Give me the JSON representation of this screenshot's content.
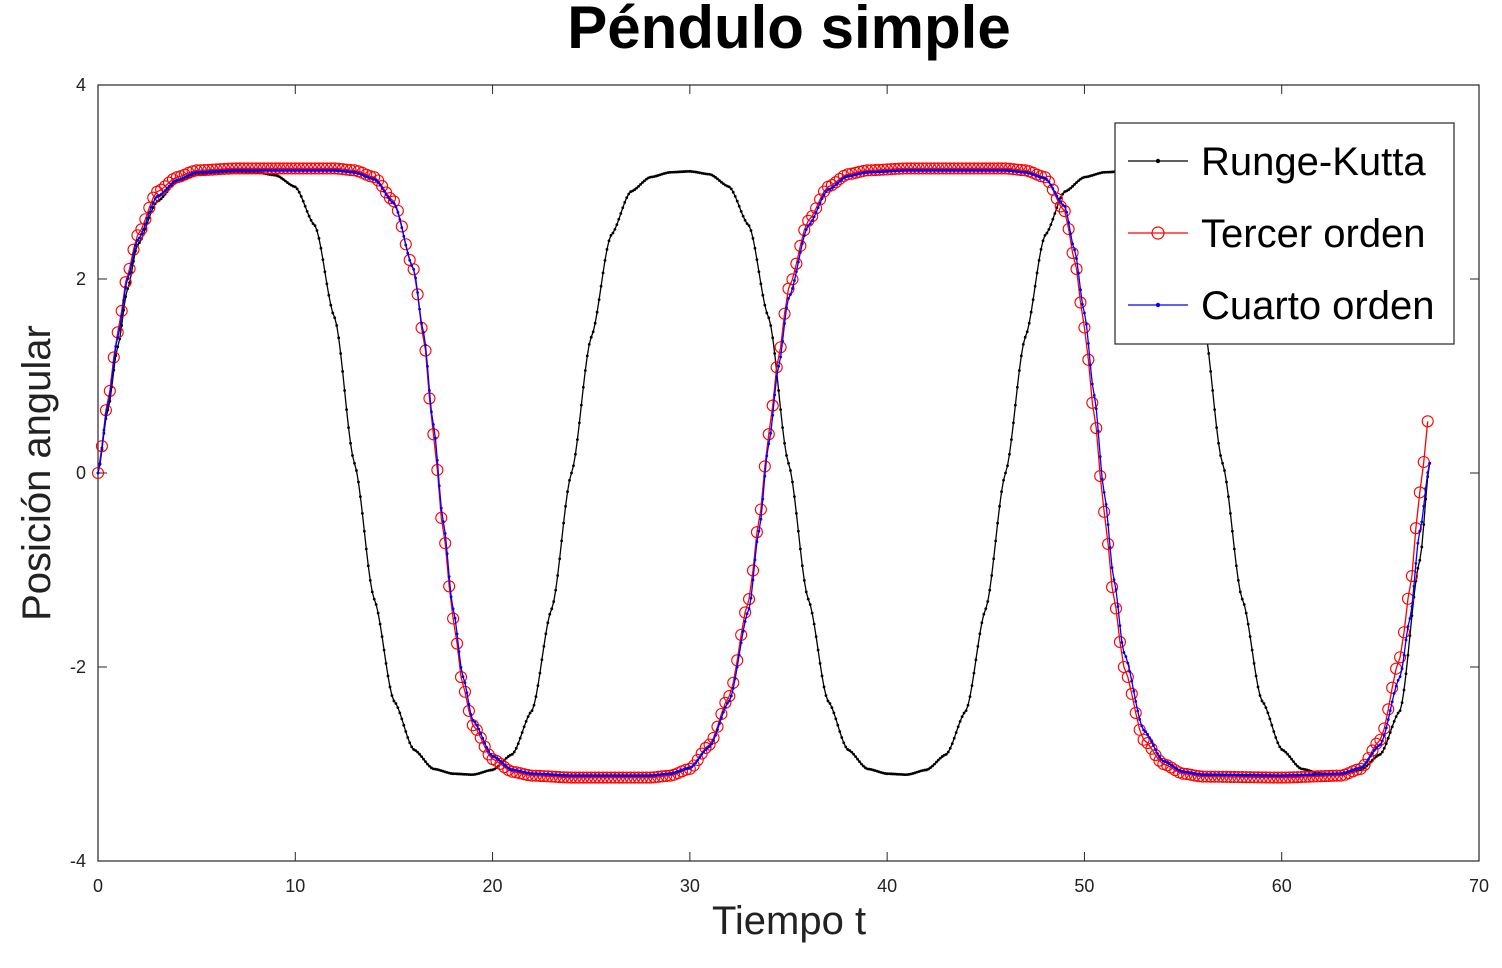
{
  "chart_data": {
    "type": "line",
    "title": "Péndulo simple",
    "xlabel": "Tiempo t",
    "ylabel": "Posición angular",
    "xlim": [
      0,
      70
    ],
    "ylim": [
      -4,
      4
    ],
    "xticks": [
      0,
      10,
      20,
      30,
      40,
      50,
      60,
      70
    ],
    "yticks": [
      -4,
      -2,
      0,
      2,
      4
    ],
    "grid": false,
    "legend_position": "top-right",
    "x_end": 67.5,
    "series": [
      {
        "name": "Runge-Kutta",
        "color": "#000000",
        "marker": "dot",
        "x_step": 0.1,
        "points": [
          [
            0,
            0
          ],
          [
            0.5,
            0.65
          ],
          [
            1,
            1.3
          ],
          [
            1.5,
            1.9
          ],
          [
            2,
            2.35
          ],
          [
            3,
            2.8
          ],
          [
            4,
            3.0
          ],
          [
            5,
            3.08
          ],
          [
            6,
            3.1
          ],
          [
            7,
            3.11
          ],
          [
            8,
            3.1
          ],
          [
            9,
            3.07
          ],
          [
            10,
            2.95
          ],
          [
            11,
            2.55
          ],
          [
            12,
            1.6
          ],
          [
            13,
            0.1
          ],
          [
            14,
            -1.3
          ],
          [
            15,
            -2.35
          ],
          [
            16,
            -2.85
          ],
          [
            17,
            -3.05
          ],
          [
            18,
            -3.1
          ],
          [
            19,
            -3.11
          ],
          [
            20,
            -3.06
          ],
          [
            21,
            -2.9
          ],
          [
            22,
            -2.45
          ],
          [
            23,
            -1.4
          ],
          [
            24,
            0.0
          ],
          [
            25,
            1.4
          ],
          [
            26,
            2.45
          ],
          [
            27,
            2.9
          ],
          [
            28,
            3.05
          ],
          [
            29,
            3.1
          ],
          [
            30,
            3.11
          ],
          [
            31,
            3.08
          ],
          [
            32,
            2.95
          ],
          [
            33,
            2.55
          ],
          [
            34,
            1.6
          ],
          [
            35,
            0.1
          ],
          [
            36,
            -1.3
          ],
          [
            37,
            -2.35
          ],
          [
            38,
            -2.85
          ],
          [
            39,
            -3.05
          ],
          [
            40,
            -3.1
          ],
          [
            41,
            -3.11
          ],
          [
            42,
            -3.06
          ],
          [
            43,
            -2.9
          ],
          [
            44,
            -2.45
          ],
          [
            45,
            -1.4
          ],
          [
            46,
            0.0
          ],
          [
            47,
            1.4
          ],
          [
            48,
            2.45
          ],
          [
            49,
            2.9
          ],
          [
            50,
            3.05
          ],
          [
            51,
            3.1
          ],
          [
            52,
            3.11
          ],
          [
            53,
            3.08
          ],
          [
            54,
            2.95
          ],
          [
            55,
            2.55
          ],
          [
            56,
            1.6
          ],
          [
            57,
            0.1
          ],
          [
            58,
            -1.3
          ],
          [
            59,
            -2.35
          ],
          [
            60,
            -2.85
          ],
          [
            61,
            -3.05
          ],
          [
            62,
            -3.1
          ],
          [
            63,
            -3.11
          ],
          [
            64,
            -3.06
          ],
          [
            65,
            -2.9
          ],
          [
            66,
            -2.45
          ],
          [
            67,
            -0.9
          ],
          [
            67.5,
            0.1
          ]
        ]
      },
      {
        "name": "Tercer orden",
        "color": "#ff0000",
        "marker": "circle",
        "x_step": 0.2,
        "points": [
          [
            0,
            0
          ],
          [
            0.5,
            0.75
          ],
          [
            1,
            1.45
          ],
          [
            1.5,
            2.05
          ],
          [
            2,
            2.45
          ],
          [
            3,
            2.9
          ],
          [
            4,
            3.05
          ],
          [
            5,
            3.12
          ],
          [
            7,
            3.14
          ],
          [
            12,
            3.14
          ],
          [
            13,
            3.12
          ],
          [
            14,
            3.05
          ],
          [
            15,
            2.8
          ],
          [
            16,
            2.1
          ],
          [
            16.5,
            1.4
          ],
          [
            17,
            0.4
          ],
          [
            17.5,
            -0.6
          ],
          [
            18,
            -1.5
          ],
          [
            18.5,
            -2.2
          ],
          [
            19,
            -2.6
          ],
          [
            20,
            -2.95
          ],
          [
            21,
            -3.08
          ],
          [
            22,
            -3.12
          ],
          [
            24,
            -3.14
          ],
          [
            28,
            -3.14
          ],
          [
            29,
            -3.12
          ],
          [
            30,
            -3.05
          ],
          [
            31,
            -2.8
          ],
          [
            32,
            -2.3
          ],
          [
            33,
            -1.3
          ],
          [
            33.5,
            -0.5
          ],
          [
            34,
            0.4
          ],
          [
            34.5,
            1.2
          ],
          [
            35,
            1.9
          ],
          [
            36,
            2.6
          ],
          [
            37,
            2.95
          ],
          [
            38,
            3.08
          ],
          [
            39,
            3.12
          ],
          [
            41,
            3.14
          ],
          [
            46,
            3.14
          ],
          [
            47,
            3.12
          ],
          [
            48,
            3.05
          ],
          [
            49,
            2.7
          ],
          [
            49.5,
            2.2
          ],
          [
            50,
            1.5
          ],
          [
            50.5,
            0.6
          ],
          [
            51,
            -0.4
          ],
          [
            51.5,
            -1.3
          ],
          [
            52,
            -2.0
          ],
          [
            53,
            -2.75
          ],
          [
            54,
            -3.0
          ],
          [
            55,
            -3.1
          ],
          [
            56,
            -3.13
          ],
          [
            60,
            -3.14
          ],
          [
            63,
            -3.12
          ],
          [
            64,
            -3.05
          ],
          [
            65,
            -2.75
          ],
          [
            66,
            -1.9
          ],
          [
            66.5,
            -1.2
          ],
          [
            67,
            -0.2
          ],
          [
            67.5,
            0.65
          ]
        ]
      },
      {
        "name": "Cuarto orden",
        "color": "#0000ff",
        "marker": "dot",
        "x_step": 0.1,
        "points": [
          [
            0,
            0
          ],
          [
            0.5,
            0.7
          ],
          [
            1,
            1.4
          ],
          [
            1.5,
            2.0
          ],
          [
            2,
            2.4
          ],
          [
            3,
            2.85
          ],
          [
            4,
            3.02
          ],
          [
            5,
            3.1
          ],
          [
            7,
            3.12
          ],
          [
            12,
            3.12
          ],
          [
            13,
            3.1
          ],
          [
            14,
            3.03
          ],
          [
            15,
            2.78
          ],
          [
            16,
            2.1
          ],
          [
            16.5,
            1.45
          ],
          [
            17,
            0.5
          ],
          [
            17.5,
            -0.5
          ],
          [
            18,
            -1.4
          ],
          [
            18.5,
            -2.1
          ],
          [
            19,
            -2.55
          ],
          [
            20,
            -2.92
          ],
          [
            21,
            -3.06
          ],
          [
            22,
            -3.1
          ],
          [
            24,
            -3.12
          ],
          [
            28,
            -3.12
          ],
          [
            29,
            -3.1
          ],
          [
            30,
            -3.04
          ],
          [
            31,
            -2.82
          ],
          [
            32,
            -2.35
          ],
          [
            33,
            -1.4
          ],
          [
            33.5,
            -0.6
          ],
          [
            34,
            0.3
          ],
          [
            34.5,
            1.1
          ],
          [
            35,
            1.8
          ],
          [
            36,
            2.55
          ],
          [
            37,
            2.92
          ],
          [
            38,
            3.06
          ],
          [
            39,
            3.1
          ],
          [
            41,
            3.12
          ],
          [
            46,
            3.12
          ],
          [
            47,
            3.1
          ],
          [
            48,
            3.04
          ],
          [
            49,
            2.75
          ],
          [
            49.5,
            2.3
          ],
          [
            50,
            1.65
          ],
          [
            50.5,
            0.8
          ],
          [
            51,
            -0.2
          ],
          [
            51.5,
            -1.1
          ],
          [
            52,
            -1.85
          ],
          [
            53,
            -2.65
          ],
          [
            54,
            -2.97
          ],
          [
            55,
            -3.08
          ],
          [
            56,
            -3.11
          ],
          [
            60,
            -3.12
          ],
          [
            63,
            -3.1
          ],
          [
            64,
            -3.04
          ],
          [
            65,
            -2.8
          ],
          [
            66,
            -2.1
          ],
          [
            66.5,
            -1.5
          ],
          [
            67,
            -0.6
          ],
          [
            67.5,
            0.1
          ]
        ]
      }
    ]
  }
}
